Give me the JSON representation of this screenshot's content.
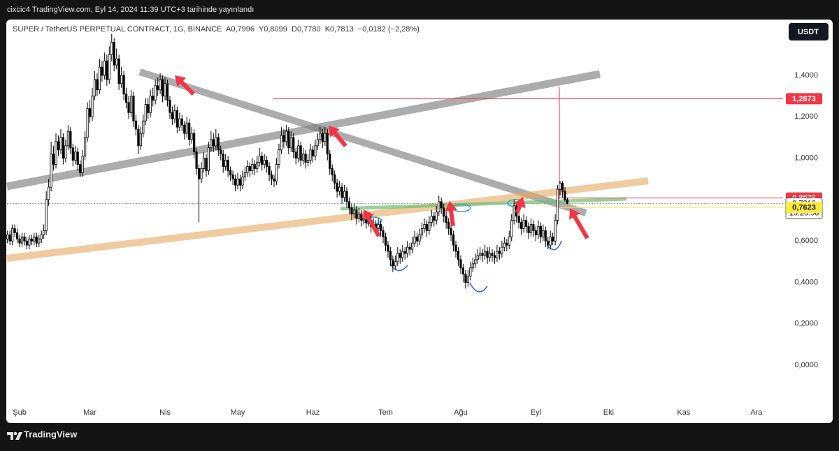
{
  "header": "cixcic4 TradingView.com, Eyl 14, 2024 11:39 UTC+3 tarihinde yayınlandı",
  "footer": "TradingView",
  "chart_data": {
    "type": "candlestick",
    "title": "SUPER / TetherUS PERPETUAL CONTRACT, 1G, BINANCE  A0,7996  Y0,8099  D0,7780  K0,7813  −0,0182 (−2,28%)",
    "currency": "USDT",
    "up_color": "#ffffff",
    "down_color": "#000000",
    "ylim": [
      -0.185,
      1.663
    ],
    "xlim": [
      -0.2,
      320
    ],
    "yticks": [
      {
        "value": 1.4,
        "label": "1,4000"
      },
      {
        "value": 1.2,
        "label": "1,2000"
      },
      {
        "value": 1.0,
        "label": "1,0000"
      },
      {
        "value": 0.6,
        "label": "0,6000"
      },
      {
        "value": 0.4,
        "label": "0,4000"
      },
      {
        "value": 0.2,
        "label": "0,2000"
      },
      {
        "value": 0.0,
        "label": "0,0000"
      }
    ],
    "xticks": [
      {
        "value": 5,
        "label": "Şub"
      },
      {
        "value": 34,
        "label": "Mar"
      },
      {
        "value": 65,
        "label": "Nis"
      },
      {
        "value": 95,
        "label": "May"
      },
      {
        "value": 126,
        "label": "Haz"
      },
      {
        "value": 156,
        "label": "Tem"
      },
      {
        "value": 187,
        "label": "Ağu"
      },
      {
        "value": 218,
        "label": "Eyl"
      },
      {
        "value": 248,
        "label": "Eki"
      },
      {
        "value": 279,
        "label": "Kas"
      },
      {
        "value": 309,
        "label": "Ara"
      }
    ],
    "price_labels": [
      {
        "value": 1.2873,
        "label": "1,2873",
        "color": "#f23645"
      },
      {
        "value": 0.8076,
        "label": "0,8076",
        "color": "#f23645"
      },
      {
        "value": 0.7813,
        "label": "0,7813",
        "countdown": "15:20:50",
        "color": "#ffffff"
      },
      {
        "value": 0.7623,
        "label": "0,7623",
        "color": "#ffeb3b"
      }
    ],
    "candles": [
      [
        0.61,
        0.65,
        0.59,
        0.63
      ],
      [
        0.63,
        0.65,
        0.58,
        0.6
      ],
      [
        0.6,
        0.68,
        0.58,
        0.66
      ],
      [
        0.66,
        0.68,
        0.62,
        0.64
      ],
      [
        0.64,
        0.66,
        0.59,
        0.61
      ],
      [
        0.61,
        0.63,
        0.57,
        0.59
      ],
      [
        0.59,
        0.64,
        0.57,
        0.62
      ],
      [
        0.62,
        0.64,
        0.58,
        0.6
      ],
      [
        0.6,
        0.62,
        0.56,
        0.58
      ],
      [
        0.58,
        0.63,
        0.56,
        0.61
      ],
      [
        0.61,
        0.63,
        0.58,
        0.6
      ],
      [
        0.6,
        0.64,
        0.58,
        0.62
      ],
      [
        0.62,
        0.64,
        0.57,
        0.59
      ],
      [
        0.59,
        0.63,
        0.57,
        0.61
      ],
      [
        0.61,
        0.65,
        0.59,
        0.63
      ],
      [
        0.63,
        0.68,
        0.61,
        0.65
      ],
      [
        0.65,
        0.84,
        0.63,
        0.8
      ],
      [
        0.8,
        0.9,
        0.77,
        0.86
      ],
      [
        0.86,
        1.08,
        0.84,
        1.02
      ],
      [
        1.02,
        1.06,
        0.94,
        0.97
      ],
      [
        0.97,
        1.12,
        0.95,
        1.08
      ],
      [
        1.08,
        1.11,
        1.01,
        1.04
      ],
      [
        1.04,
        1.14,
        1.02,
        1.1
      ],
      [
        1.1,
        1.12,
        0.97,
        1.0
      ],
      [
        1.0,
        1.09,
        0.98,
        1.06
      ],
      [
        1.06,
        1.16,
        1.04,
        1.13
      ],
      [
        1.13,
        1.15,
        1.02,
        1.05
      ],
      [
        1.05,
        1.07,
        0.96,
        0.99
      ],
      [
        0.99,
        1.06,
        0.97,
        1.03
      ],
      [
        1.03,
        1.05,
        0.94,
        0.97
      ],
      [
        0.97,
        0.99,
        0.91,
        0.93
      ],
      [
        0.93,
        1.04,
        0.91,
        1.01
      ],
      [
        1.01,
        1.13,
        0.99,
        1.1
      ],
      [
        1.1,
        1.27,
        1.08,
        1.24
      ],
      [
        1.24,
        1.28,
        1.17,
        1.2
      ],
      [
        1.2,
        1.34,
        1.18,
        1.3
      ],
      [
        1.3,
        1.42,
        1.28,
        1.38
      ],
      [
        1.38,
        1.41,
        1.3,
        1.33
      ],
      [
        1.33,
        1.48,
        1.31,
        1.44
      ],
      [
        1.44,
        1.47,
        1.37,
        1.4
      ],
      [
        1.4,
        1.51,
        1.38,
        1.47
      ],
      [
        1.47,
        1.5,
        1.35,
        1.38
      ],
      [
        1.38,
        1.54,
        1.36,
        1.5
      ],
      [
        1.5,
        1.6,
        1.47,
        1.56
      ],
      [
        1.56,
        1.58,
        1.42,
        1.45
      ],
      [
        1.45,
        1.53,
        1.43,
        1.48
      ],
      [
        1.48,
        1.5,
        1.33,
        1.36
      ],
      [
        1.36,
        1.44,
        1.34,
        1.4
      ],
      [
        1.4,
        1.42,
        1.28,
        1.31
      ],
      [
        1.31,
        1.34,
        1.24,
        1.27
      ],
      [
        1.27,
        1.3,
        1.19,
        1.22
      ],
      [
        1.22,
        1.33,
        1.2,
        1.3
      ],
      [
        1.3,
        1.32,
        1.15,
        1.18
      ],
      [
        1.18,
        1.21,
        1.11,
        1.14
      ],
      [
        1.14,
        1.16,
        1.02,
        1.06
      ],
      [
        1.06,
        1.15,
        1.04,
        1.12
      ],
      [
        1.12,
        1.21,
        1.1,
        1.18
      ],
      [
        1.18,
        1.29,
        1.16,
        1.26
      ],
      [
        1.26,
        1.29,
        1.19,
        1.22
      ],
      [
        1.22,
        1.33,
        1.2,
        1.3
      ],
      [
        1.3,
        1.34,
        1.25,
        1.28
      ],
      [
        1.28,
        1.38,
        1.26,
        1.35
      ],
      [
        1.35,
        1.39,
        1.3,
        1.33
      ],
      [
        1.33,
        1.41,
        1.31,
        1.38
      ],
      [
        1.38,
        1.4,
        1.27,
        1.3
      ],
      [
        1.3,
        1.39,
        1.28,
        1.36
      ],
      [
        1.36,
        1.38,
        1.25,
        1.28
      ],
      [
        1.28,
        1.3,
        1.19,
        1.22
      ],
      [
        1.22,
        1.25,
        1.16,
        1.19
      ],
      [
        1.19,
        1.26,
        1.17,
        1.23
      ],
      [
        1.23,
        1.25,
        1.12,
        1.15
      ],
      [
        1.15,
        1.22,
        1.13,
        1.19
      ],
      [
        1.19,
        1.21,
        1.13,
        1.16
      ],
      [
        1.16,
        1.18,
        1.09,
        1.12
      ],
      [
        1.12,
        1.2,
        1.1,
        1.17
      ],
      [
        1.17,
        1.19,
        1.06,
        1.09
      ],
      [
        1.09,
        1.15,
        1.07,
        1.12
      ],
      [
        1.12,
        1.14,
        1.0,
        1.03
      ],
      [
        1.03,
        1.05,
        0.92,
        0.95
      ],
      [
        0.95,
        0.97,
        0.69,
        0.9
      ],
      [
        0.9,
        0.98,
        0.88,
        0.95
      ],
      [
        0.95,
        1.03,
        0.93,
        1.0
      ],
      [
        1.0,
        1.02,
        0.91,
        0.94
      ],
      [
        0.94,
        1.08,
        0.92,
        1.05
      ],
      [
        1.05,
        1.13,
        1.03,
        1.09
      ],
      [
        1.09,
        1.12,
        1.03,
        1.06
      ],
      [
        1.06,
        1.14,
        1.04,
        1.1
      ],
      [
        1.1,
        1.12,
        1.01,
        1.04
      ],
      [
        1.04,
        1.06,
        0.99,
        1.02
      ],
      [
        1.02,
        1.04,
        0.93,
        0.96
      ],
      [
        0.96,
        1.02,
        0.94,
        0.99
      ],
      [
        0.99,
        1.01,
        0.91,
        0.94
      ],
      [
        0.94,
        0.96,
        0.89,
        0.92
      ],
      [
        0.92,
        0.94,
        0.87,
        0.9
      ],
      [
        0.9,
        0.92,
        0.84,
        0.87
      ],
      [
        0.87,
        0.93,
        0.85,
        0.9
      ],
      [
        0.9,
        0.92,
        0.84,
        0.87
      ],
      [
        0.87,
        0.94,
        0.85,
        0.91
      ],
      [
        0.91,
        0.96,
        0.89,
        0.93
      ],
      [
        0.93,
        0.99,
        0.91,
        0.96
      ],
      [
        0.96,
        0.98,
        0.91,
        0.94
      ],
      [
        0.94,
        1.0,
        0.92,
        0.97
      ],
      [
        0.97,
        0.99,
        0.92,
        0.95
      ],
      [
        0.95,
        1.01,
        0.93,
        0.98
      ],
      [
        0.98,
        1.05,
        0.96,
        1.01
      ],
      [
        1.01,
        1.03,
        0.94,
        0.97
      ],
      [
        0.97,
        1.02,
        0.95,
        0.99
      ],
      [
        0.99,
        1.01,
        0.93,
        0.96
      ],
      [
        0.96,
        0.98,
        0.89,
        0.92
      ],
      [
        0.92,
        0.94,
        0.87,
        0.9
      ],
      [
        0.9,
        0.92,
        0.86,
        0.89
      ],
      [
        0.89,
        1.0,
        0.87,
        0.97
      ],
      [
        0.97,
        1.07,
        0.95,
        1.04
      ],
      [
        1.04,
        1.15,
        1.02,
        1.11
      ],
      [
        1.11,
        1.14,
        1.05,
        1.08
      ],
      [
        1.08,
        1.16,
        1.06,
        1.13
      ],
      [
        1.13,
        1.15,
        1.02,
        1.05
      ],
      [
        1.05,
        1.13,
        1.03,
        1.1
      ],
      [
        1.1,
        1.12,
        1.0,
        1.03
      ],
      [
        1.03,
        1.05,
        0.97,
        1.0
      ],
      [
        1.0,
        1.09,
        0.98,
        1.06
      ],
      [
        1.06,
        1.08,
        0.96,
        0.99
      ],
      [
        0.99,
        1.05,
        0.97,
        1.02
      ],
      [
        1.02,
        1.04,
        0.95,
        0.98
      ],
      [
        0.98,
        1.02,
        0.96,
        0.99
      ],
      [
        0.99,
        1.07,
        0.97,
        1.04
      ],
      [
        1.04,
        1.06,
        0.98,
        1.01
      ],
      [
        1.01,
        1.09,
        0.99,
        1.06
      ],
      [
        1.06,
        1.12,
        1.04,
        1.09
      ],
      [
        1.09,
        1.15,
        1.07,
        1.12
      ],
      [
        1.12,
        1.14,
        1.05,
        1.08
      ],
      [
        1.08,
        1.15,
        1.06,
        1.12
      ],
      [
        1.12,
        1.14,
        0.99,
        1.02
      ],
      [
        1.02,
        1.04,
        0.92,
        0.95
      ],
      [
        0.95,
        0.97,
        0.89,
        0.92
      ],
      [
        0.92,
        0.94,
        0.85,
        0.88
      ],
      [
        0.88,
        0.9,
        0.81,
        0.84
      ],
      [
        0.84,
        0.89,
        0.82,
        0.86
      ],
      [
        0.86,
        0.88,
        0.78,
        0.81
      ],
      [
        0.81,
        0.87,
        0.79,
        0.84
      ],
      [
        0.84,
        0.86,
        0.76,
        0.79
      ],
      [
        0.79,
        0.81,
        0.73,
        0.76
      ],
      [
        0.76,
        0.78,
        0.7,
        0.73
      ],
      [
        0.73,
        0.78,
        0.71,
        0.75
      ],
      [
        0.75,
        0.77,
        0.68,
        0.71
      ],
      [
        0.71,
        0.76,
        0.69,
        0.73
      ],
      [
        0.73,
        0.75,
        0.67,
        0.7
      ],
      [
        0.7,
        0.74,
        0.68,
        0.71
      ],
      [
        0.71,
        0.73,
        0.66,
        0.69
      ],
      [
        0.69,
        0.73,
        0.67,
        0.7
      ],
      [
        0.7,
        0.72,
        0.64,
        0.67
      ],
      [
        0.67,
        0.71,
        0.65,
        0.68
      ],
      [
        0.68,
        0.7,
        0.63,
        0.66
      ],
      [
        0.66,
        0.71,
        0.64,
        0.68
      ],
      [
        0.68,
        0.7,
        0.62,
        0.65
      ],
      [
        0.65,
        0.67,
        0.59,
        0.62
      ],
      [
        0.62,
        0.64,
        0.55,
        0.58
      ],
      [
        0.58,
        0.6,
        0.52,
        0.55
      ],
      [
        0.55,
        0.57,
        0.48,
        0.51
      ],
      [
        0.51,
        0.53,
        0.45,
        0.48
      ],
      [
        0.48,
        0.53,
        0.46,
        0.5
      ],
      [
        0.5,
        0.57,
        0.48,
        0.54
      ],
      [
        0.54,
        0.56,
        0.49,
        0.52
      ],
      [
        0.52,
        0.58,
        0.5,
        0.55
      ],
      [
        0.55,
        0.57,
        0.51,
        0.54
      ],
      [
        0.54,
        0.6,
        0.52,
        0.57
      ],
      [
        0.57,
        0.59,
        0.53,
        0.56
      ],
      [
        0.56,
        0.62,
        0.54,
        0.59
      ],
      [
        0.59,
        0.65,
        0.57,
        0.62
      ],
      [
        0.62,
        0.64,
        0.57,
        0.6
      ],
      [
        0.6,
        0.66,
        0.58,
        0.63
      ],
      [
        0.63,
        0.69,
        0.61,
        0.66
      ],
      [
        0.66,
        0.71,
        0.64,
        0.68
      ],
      [
        0.68,
        0.7,
        0.62,
        0.65
      ],
      [
        0.65,
        0.72,
        0.63,
        0.69
      ],
      [
        0.69,
        0.75,
        0.67,
        0.72
      ],
      [
        0.72,
        0.74,
        0.67,
        0.7
      ],
      [
        0.7,
        0.77,
        0.68,
        0.74
      ],
      [
        0.74,
        0.82,
        0.72,
        0.79
      ],
      [
        0.79,
        0.81,
        0.73,
        0.76
      ],
      [
        0.76,
        0.78,
        0.69,
        0.72
      ],
      [
        0.72,
        0.74,
        0.66,
        0.69
      ],
      [
        0.69,
        0.71,
        0.63,
        0.66
      ],
      [
        0.66,
        0.68,
        0.6,
        0.63
      ],
      [
        0.63,
        0.65,
        0.55,
        0.58
      ],
      [
        0.58,
        0.6,
        0.52,
        0.55
      ],
      [
        0.55,
        0.57,
        0.48,
        0.51
      ],
      [
        0.51,
        0.53,
        0.44,
        0.47
      ],
      [
        0.47,
        0.49,
        0.4,
        0.44
      ],
      [
        0.44,
        0.46,
        0.37,
        0.4
      ],
      [
        0.4,
        0.46,
        0.38,
        0.43
      ],
      [
        0.43,
        0.5,
        0.41,
        0.47
      ],
      [
        0.47,
        0.52,
        0.45,
        0.49
      ],
      [
        0.49,
        0.54,
        0.47,
        0.51
      ],
      [
        0.51,
        0.56,
        0.49,
        0.53
      ],
      [
        0.53,
        0.57,
        0.51,
        0.54
      ],
      [
        0.54,
        0.56,
        0.5,
        0.53
      ],
      [
        0.53,
        0.58,
        0.51,
        0.55
      ],
      [
        0.55,
        0.57,
        0.49,
        0.52
      ],
      [
        0.52,
        0.57,
        0.5,
        0.54
      ],
      [
        0.54,
        0.56,
        0.5,
        0.53
      ],
      [
        0.53,
        0.55,
        0.49,
        0.52
      ],
      [
        0.52,
        0.58,
        0.5,
        0.55
      ],
      [
        0.55,
        0.57,
        0.51,
        0.54
      ],
      [
        0.54,
        0.6,
        0.52,
        0.57
      ],
      [
        0.57,
        0.62,
        0.55,
        0.59
      ],
      [
        0.59,
        0.61,
        0.55,
        0.58
      ],
      [
        0.58,
        0.65,
        0.56,
        0.62
      ],
      [
        0.62,
        0.73,
        0.6,
        0.7
      ],
      [
        0.7,
        0.8,
        0.68,
        0.77
      ],
      [
        0.77,
        0.79,
        0.69,
        0.72
      ],
      [
        0.72,
        0.74,
        0.66,
        0.69
      ],
      [
        0.69,
        0.71,
        0.63,
        0.66
      ],
      [
        0.66,
        0.73,
        0.64,
        0.7
      ],
      [
        0.7,
        0.72,
        0.64,
        0.67
      ],
      [
        0.67,
        0.69,
        0.61,
        0.64
      ],
      [
        0.64,
        0.71,
        0.62,
        0.68
      ],
      [
        0.68,
        0.7,
        0.62,
        0.65
      ],
      [
        0.65,
        0.67,
        0.6,
        0.63
      ],
      [
        0.63,
        0.7,
        0.61,
        0.67
      ],
      [
        0.67,
        0.69,
        0.59,
        0.62
      ],
      [
        0.62,
        0.68,
        0.6,
        0.65
      ],
      [
        0.65,
        0.67,
        0.57,
        0.6
      ],
      [
        0.6,
        0.62,
        0.56,
        0.58
      ],
      [
        0.58,
        0.65,
        0.56,
        0.62
      ],
      [
        0.62,
        0.64,
        0.58,
        0.6
      ],
      [
        0.6,
        0.73,
        0.58,
        0.7
      ],
      [
        0.7,
        0.87,
        0.68,
        0.85
      ],
      [
        0.85,
        0.89,
        0.82,
        0.88
      ],
      [
        0.88,
        0.89,
        0.81,
        0.84
      ],
      [
        0.84,
        0.86,
        0.79,
        0.7996
      ],
      [
        0.7996,
        0.8099,
        0.778,
        0.7813
      ]
    ]
  }
}
